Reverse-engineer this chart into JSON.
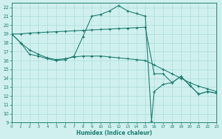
{
  "xlabel": "Humidex (Indice chaleur)",
  "xlim": [
    0,
    23
  ],
  "ylim": [
    9,
    22.5
  ],
  "xticks": [
    0,
    1,
    2,
    3,
    4,
    5,
    6,
    7,
    8,
    9,
    10,
    11,
    12,
    13,
    14,
    15,
    16,
    17,
    18,
    19,
    20,
    21,
    22,
    23
  ],
  "yticks": [
    9,
    10,
    11,
    12,
    13,
    14,
    15,
    16,
    17,
    18,
    19,
    20,
    21,
    22
  ],
  "bg_color": "#cff0ee",
  "line_color": "#1a7a6e",
  "grid_color": "#aadbd8",
  "line1": {
    "x": [
      0,
      1,
      2,
      3,
      4,
      5,
      6,
      7,
      8,
      9,
      10,
      11,
      12,
      13,
      14,
      15,
      16,
      17,
      18,
      19,
      20,
      21,
      22,
      23
    ],
    "y": [
      19.0,
      19.0,
      19.1,
      19.15,
      19.2,
      19.25,
      19.3,
      19.35,
      19.4,
      19.45,
      19.5,
      19.55,
      19.6,
      19.65,
      19.7,
      19.75,
      14.5,
      14.5,
      13.5,
      14.2,
      13.2,
      12.2,
      12.5,
      12.3
    ]
  },
  "line2": {
    "x": [
      0,
      1,
      2,
      3,
      4,
      5,
      6,
      7,
      8,
      9,
      10,
      11,
      12,
      13,
      14,
      15,
      15.7,
      16,
      17,
      18,
      19,
      20,
      21,
      22,
      23
    ],
    "y": [
      19.0,
      18.0,
      16.7,
      16.5,
      16.2,
      16.0,
      16.1,
      16.5,
      18.7,
      21.0,
      21.2,
      21.6,
      22.2,
      21.6,
      21.3,
      21.0,
      9.2,
      12.5,
      13.3,
      13.5,
      14.2,
      13.2,
      12.2,
      12.5,
      12.3
    ]
  },
  "line3": {
    "x": [
      0,
      1,
      2,
      3,
      4,
      5,
      6,
      7,
      8,
      9,
      10,
      11,
      12,
      13,
      14,
      15,
      16,
      17,
      18,
      19,
      20,
      21,
      22,
      23
    ],
    "y": [
      19.0,
      18.0,
      17.2,
      16.7,
      16.3,
      16.1,
      16.2,
      16.4,
      16.5,
      16.5,
      16.5,
      16.4,
      16.3,
      16.2,
      16.1,
      16.0,
      15.5,
      15.0,
      14.5,
      14.0,
      13.5,
      13.1,
      12.8,
      12.5
    ]
  }
}
